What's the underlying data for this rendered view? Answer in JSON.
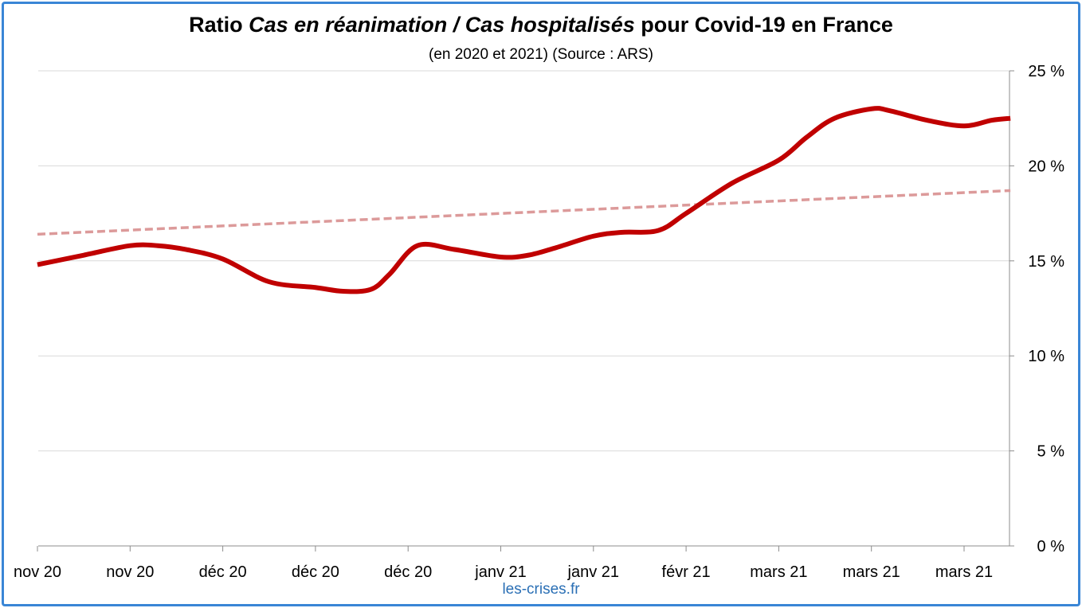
{
  "header": {
    "title_prefix": "Ratio ",
    "title_italic": "Cas en réanimation / Cas hospitalisés",
    "title_suffix": " pour Covid-19 en France",
    "subtitle": "(en 2020 et 2021) (Source : ARS)"
  },
  "footer": {
    "credit": "les-crises.fr"
  },
  "colors": {
    "frame": "#3a86d6",
    "series": "#c00000",
    "trend": "#dc9a9a",
    "grid": "#d9d9d9",
    "credit": "#2a6fb5"
  },
  "chart_data": {
    "type": "line",
    "title": "Ratio Cas en réanimation / Cas hospitalisés pour Covid-19 en France",
    "subtitle": "(en 2020 et 2021) (Source : ARS)",
    "x_tick_labels": [
      "nov 20",
      "nov 20",
      "déc 20",
      "déc 20",
      "déc 20",
      "janv 21",
      "janv 21",
      "févr 21",
      "mars 21",
      "mars 21",
      "mars 21"
    ],
    "y_axis_position": "right",
    "ylim": [
      0,
      25
    ],
    "y_ticks": [
      0,
      5,
      10,
      15,
      20,
      25
    ],
    "y_tick_labels": [
      "0 %",
      "5 %",
      "10 %",
      "15 %",
      "20 %",
      "25 %"
    ],
    "grid": true,
    "x_range": [
      0,
      10.5
    ],
    "series": [
      {
        "style": "solid",
        "x": [
          0,
          0.5,
          1,
          1.3,
          1.6,
          2,
          2.5,
          3,
          3.3,
          3.6,
          3.8,
          4.1,
          4.5,
          5,
          5.3,
          5.6,
          6,
          6.3,
          6.7,
          7,
          7.5,
          8,
          8.3,
          8.6,
          9,
          9.2,
          9.6,
          10,
          10.3,
          10.5
        ],
        "y": [
          14.8,
          15.3,
          15.8,
          15.8,
          15.6,
          15.1,
          13.9,
          13.6,
          13.4,
          13.5,
          14.3,
          15.8,
          15.6,
          15.2,
          15.3,
          15.7,
          16.3,
          16.5,
          16.6,
          17.5,
          19.1,
          20.3,
          21.5,
          22.5,
          23.0,
          22.9,
          22.4,
          22.1,
          22.4,
          22.5
        ]
      },
      {
        "style": "dashed",
        "x": [
          0,
          10.5
        ],
        "y": [
          16.4,
          18.7
        ]
      }
    ]
  }
}
